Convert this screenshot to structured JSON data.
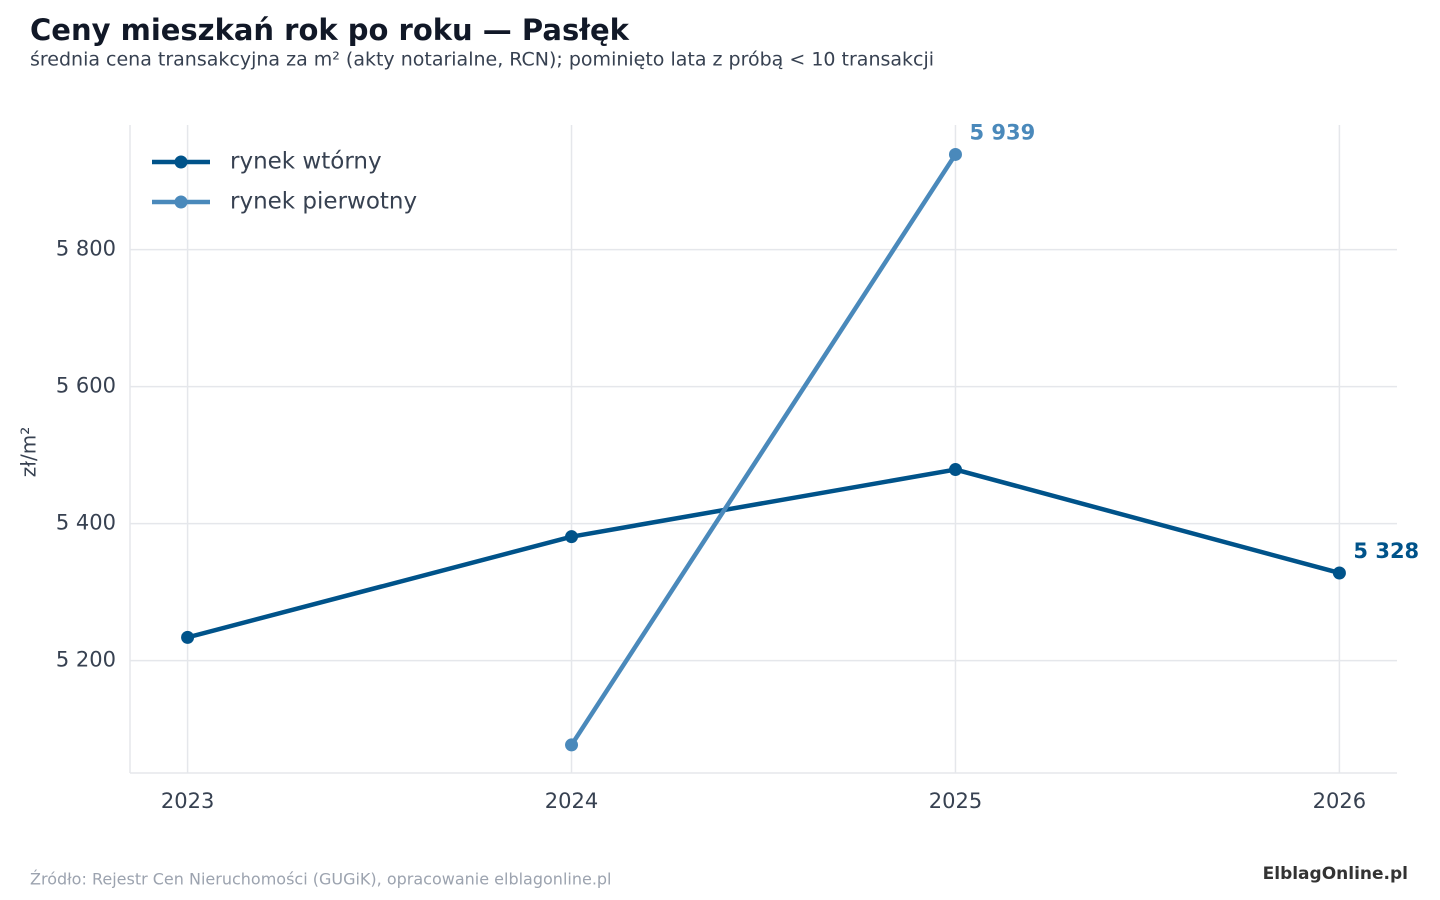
{
  "chart_data": {
    "type": "line",
    "title": "Ceny mieszkań rok po roku — Pasłęk",
    "subtitle": "średnia cena transakcyjna za m² (akty notarialne, RCN); pominięto lata z próbą < 10 transakcji",
    "y_label": "zł/m²",
    "x": [
      2023,
      2024,
      2025,
      2026
    ],
    "series": [
      {
        "name": "rynek wtórny",
        "color": "#00538a",
        "values": [
          5234,
          5381,
          5479,
          5328
        ],
        "value_labels": [
          null,
          null,
          null,
          "5 328"
        ]
      },
      {
        "name": "rynek pierwotny",
        "color": "#4a89bb",
        "values": [
          null,
          5077,
          5939,
          null
        ],
        "value_labels": [
          null,
          null,
          "5 939",
          null
        ]
      }
    ],
    "xlim": [
      2022.85,
      2026.15
    ],
    "xticks": [
      2023,
      2024,
      2025,
      2026
    ],
    "ylim": [
      5036,
      5982
    ],
    "yticks": [
      {
        "value": 5200,
        "label": "5 200"
      },
      {
        "value": 5400,
        "label": "5 400"
      },
      {
        "value": 5600,
        "label": "5 600"
      },
      {
        "value": 5800,
        "label": "5 800"
      }
    ],
    "grid": true,
    "legend": "upper-left",
    "source": "Źródło: Rejestr Cen Nieruchomości (GUGiK), opracowanie elblagonline.pl",
    "logo": "ElblagOnline.pl"
  }
}
